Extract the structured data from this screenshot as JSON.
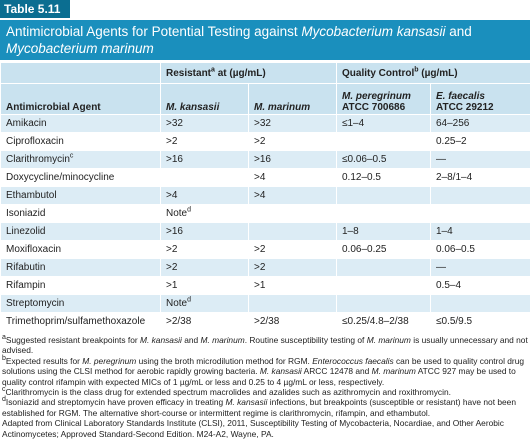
{
  "table_label": "Table 5.11",
  "title": [
    "Antimicrobial Agents for Potential Testing against ",
    "Mycobacterium kansasii",
    " and ",
    "Mycobacterium marinum"
  ],
  "table": {
    "groups": [
      {
        "text": "Resistant",
        "sup": "a",
        "after": " at (µg/mL)"
      },
      {
        "text": "Quality Control",
        "sup": "b",
        "after": " (µg/mL)"
      }
    ],
    "columns": [
      "Antimicrobial Agent",
      "M. kansasii",
      "M. marinum",
      [
        "M. peregrinum",
        "ATCC 700686"
      ],
      [
        "E. faecalis",
        "ATCC 29212"
      ]
    ],
    "rows": [
      [
        "Amikacin",
        ">32",
        ">32",
        "≤1–4",
        "64–256"
      ],
      [
        "Ciprofloxacin",
        ">2",
        ">2",
        null,
        "0.25–2"
      ],
      [
        {
          "text": "Clarithromycin",
          "sup": "c"
        },
        ">16",
        ">16",
        "≤0.06–0.5",
        "—"
      ],
      [
        "Doxycycline/minocycline",
        null,
        ">4",
        "0.12–0.5",
        "2–8/1–4"
      ],
      [
        "Ethambutol",
        ">4",
        ">4",
        null,
        null
      ],
      [
        "Isoniazid",
        {
          "text": "Note",
          "sup": "d"
        },
        null,
        null,
        null
      ],
      [
        "Linezolid",
        ">16",
        null,
        "1–8",
        "1–4"
      ],
      [
        "Moxifloxacin",
        ">2",
        ">2",
        "0.06–0.25",
        "0.06–0.5"
      ],
      [
        "Rifabutin",
        ">2",
        ">2",
        null,
        "—"
      ],
      [
        "Rifampin",
        ">1",
        ">1",
        null,
        "0.5–4"
      ],
      [
        "Streptomycin",
        {
          "text": "Note",
          "sup": "d"
        },
        null,
        null,
        null
      ],
      [
        "Trimethoprim/sulfamethoxazole",
        ">2/38",
        ">2/38",
        "≤0.25/4.8–2/38",
        "≤0.5/9.5"
      ]
    ]
  },
  "footnotes": [
    {
      "mark": "a",
      "parts": [
        "Suggested resistant breakpoints for ",
        "M. kansasii",
        " and ",
        "M. marinum",
        ". Routine susceptibility testing of ",
        "M. marinum",
        " is usually unnecessary and not advised."
      ]
    },
    {
      "mark": "b",
      "parts": [
        "Expected results for ",
        "M. peregrinum",
        " using the broth microdilution method for RGM. ",
        "Enterococcus faecalis",
        " can be used to quality control drug solutions using the CLSI method for aerobic rapidly growing bacteria. ",
        "M. kansasii",
        " ARCC 12478 and ",
        "M. marinum",
        " ATCC 927 may be used to quality control rifampin with expected MICs of 1 µg/mL or less and 0.25 to 4 µg/mL or less, respectively."
      ]
    },
    {
      "mark": "c",
      "parts": [
        "Clarithromycin is the class drug for extended spectrum macrolides and azalides such as azithromycin and roxithromycin."
      ]
    },
    {
      "mark": "d",
      "parts": [
        "Isoniazid and streptomycin have proven efficacy in treating ",
        "M. kansasii",
        " infections, but breakpoints (susceptible or resistant) have not been established for RGM. The alternative short-course or intermittent regime is clarithromycin, rifampin, and ethambutol."
      ]
    }
  ],
  "source": "Adapted from Clinical Laboratory Standards Institute (CLSI), 2011, Susceptibility Testing of Mycobacteria, Nocardiae, and Other Aerobic Actinomycetes; Approved Standard-Second Edition. M24-A2, Wayne, PA."
}
